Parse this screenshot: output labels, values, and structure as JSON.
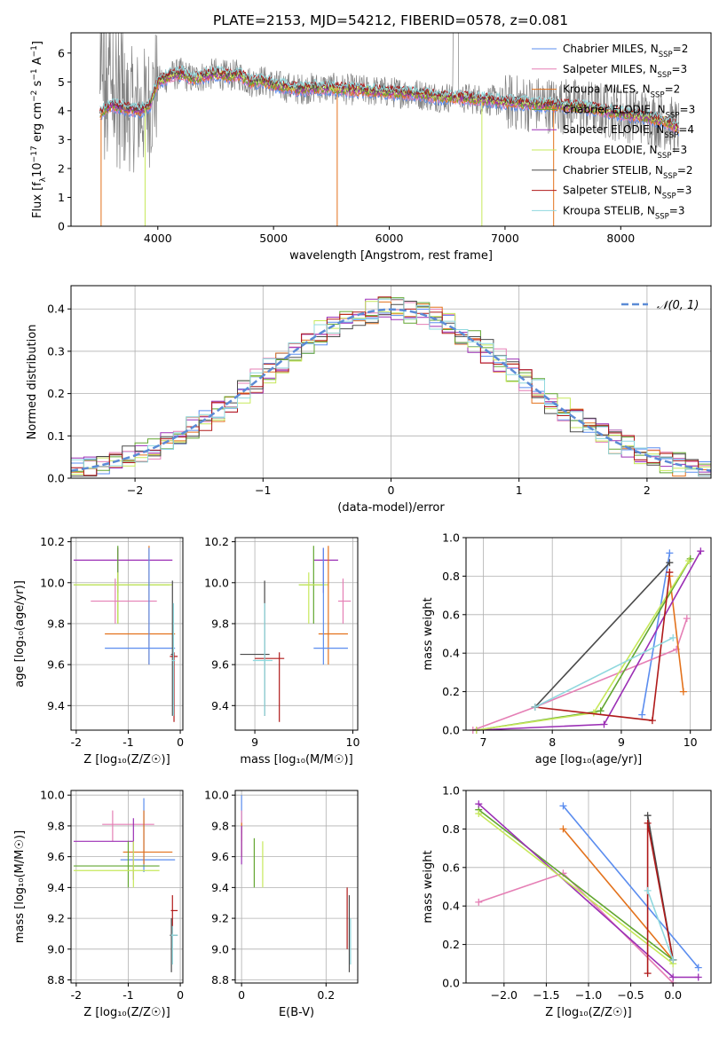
{
  "title": "PLATE=2153, MJD=54212, FIBERID=0578, z=0.081",
  "colors": {
    "chab_miles": "#5b8def",
    "salp_miles": "#e57fb5",
    "krou_miles": "#e3721c",
    "chab_elodie": "#62a630",
    "salp_elodie": "#9b2fb5",
    "krou_elodie": "#c6e85a",
    "chab_stelib": "#4a4a4a",
    "salp_stelib": "#b01a1a",
    "krou_stelib": "#8fd8de",
    "data": "#808080",
    "gauss": "#5b8bd6",
    "grid": "#b0b0b0"
  },
  "chart_data": [
    {
      "type": "line",
      "name": "spectrum",
      "xlabel": "wavelength [Angstrom, rest frame]",
      "ylabel": "Flux [f_λ 10^-17 erg cm^-2 s^-1 A^-1]",
      "xlim": [
        3250,
        8780
      ],
      "ylim": [
        0,
        6.7
      ],
      "xticks": [
        4000,
        5000,
        6000,
        7000,
        8000
      ],
      "yticks": [
        0,
        1,
        2,
        3,
        4,
        5,
        6
      ],
      "legend": {
        "position": "top-right",
        "entries": [
          {
            "label": "Chabrier MILES, N",
            "sub": "SSP",
            "tail": "=2",
            "key": "chab_miles"
          },
          {
            "label": "Salpeter MILES, N",
            "sub": "SSP",
            "tail": "=3",
            "key": "salp_miles"
          },
          {
            "label": "Kroupa MILES, N",
            "sub": "SSP",
            "tail": "=2",
            "key": "krou_miles"
          },
          {
            "label": "Chabrier ELODIE, N",
            "sub": "SSP",
            "tail": "=3",
            "key": "chab_elodie"
          },
          {
            "label": "Salpeter ELODIE, N",
            "sub": "SSP",
            "tail": "=4",
            "key": "salp_elodie"
          },
          {
            "label": "Kroupa ELODIE, N",
            "sub": "SSP",
            "tail": "=3",
            "key": "krou_elodie"
          },
          {
            "label": "Chabrier STELIB, N",
            "sub": "SSP",
            "tail": "=2",
            "key": "chab_stelib"
          },
          {
            "label": "Salpeter STELIB, N",
            "sub": "SSP",
            "tail": "=3",
            "key": "salp_stelib"
          },
          {
            "label": "Kroupa STELIB, N",
            "sub": "SSP",
            "tail": "=3",
            "key": "krou_stelib"
          }
        ]
      },
      "model_continuum": [
        [
          3500,
          3.9
        ],
        [
          3600,
          4.2
        ],
        [
          3700,
          4.1
        ],
        [
          3850,
          4.0
        ],
        [
          3930,
          4.2
        ],
        [
          4000,
          5.0
        ],
        [
          4100,
          5.2
        ],
        [
          4200,
          5.3
        ],
        [
          4300,
          5.1
        ],
        [
          4400,
          5.2
        ],
        [
          4500,
          5.3
        ],
        [
          4600,
          5.2
        ],
        [
          4700,
          5.25
        ],
        [
          4800,
          5.0
        ],
        [
          4900,
          5.05
        ],
        [
          5000,
          4.9
        ],
        [
          5200,
          4.75
        ],
        [
          5400,
          4.8
        ],
        [
          5600,
          4.75
        ],
        [
          5800,
          4.7
        ],
        [
          6000,
          4.65
        ],
        [
          6200,
          4.6
        ],
        [
          6400,
          4.5
        ],
        [
          6600,
          4.45
        ],
        [
          6800,
          4.4
        ],
        [
          7000,
          4.3
        ],
        [
          7200,
          4.25
        ],
        [
          7400,
          4.2
        ],
        [
          7600,
          4.15
        ],
        [
          7800,
          4.05
        ],
        [
          8000,
          3.9
        ],
        [
          8200,
          3.8
        ],
        [
          8400,
          3.6
        ],
        [
          8500,
          3.4
        ]
      ]
    },
    {
      "type": "line",
      "name": "residual-histogram",
      "xlabel": "(data-model)/error",
      "ylabel": "Normed distribution",
      "xlim": [
        -2.5,
        2.5
      ],
      "ylim": [
        0,
        0.455
      ],
      "xticks": [
        -2,
        -1,
        0,
        1,
        2
      ],
      "yticks": [
        0.0,
        0.1,
        0.2,
        0.3,
        0.4
      ],
      "xtick_labels": [
        "−2",
        "−1",
        "0",
        "1",
        "2"
      ],
      "legend_label": "𝒩(0, 1)",
      "bin_width": 0.1
    },
    {
      "type": "scatter",
      "name": "age-vs-Z",
      "xlabel": "Z [log₁₀(Z/Z☉)]",
      "ylabel": "age [log₁₀(age/yr)]",
      "xlim": [
        -2.1,
        0.05
      ],
      "ylim": [
        9.28,
        10.22
      ],
      "xticks": [
        -2,
        -1,
        0
      ],
      "yticks": [
        9.4,
        9.6,
        9.8,
        10.0,
        10.2
      ],
      "points": [
        {
          "key": "salp_elodie",
          "x": -1.2,
          "y": 10.11,
          "x0": -2.05,
          "x1": -0.15,
          "y0": 9.95,
          "y1": 10.17
        },
        {
          "key": "chab_elodie",
          "x": -1.2,
          "y": 9.99,
          "x0": -2.05,
          "x1": -0.2,
          "y0": 9.8,
          "y1": 10.18
        },
        {
          "key": "krou_elodie",
          "x": -1.2,
          "y": 9.99,
          "x0": -2.05,
          "x1": -0.15,
          "y0": 9.8,
          "y1": 10.05
        },
        {
          "key": "salp_miles",
          "x": -1.25,
          "y": 9.91,
          "x0": -1.72,
          "x1": -0.45,
          "y0": 9.8,
          "y1": 10.02
        },
        {
          "key": "krou_miles",
          "x": -0.6,
          "y": 9.75,
          "x0": -1.45,
          "x1": -0.1,
          "y0": 9.6,
          "y1": 10.18
        },
        {
          "key": "chab_miles",
          "x": -0.6,
          "y": 9.68,
          "x0": -1.45,
          "x1": -0.1,
          "y0": 9.6,
          "y1": 10.17
        },
        {
          "key": "chab_stelib",
          "x": -0.15,
          "y": 9.65,
          "x0": -0.18,
          "x1": -0.12,
          "y0": 9.35,
          "y1": 10.01
        },
        {
          "key": "salp_stelib",
          "x": -0.12,
          "y": 9.64,
          "x0": -0.2,
          "x1": -0.05,
          "y0": 9.32,
          "y1": 9.66
        },
        {
          "key": "krou_stelib",
          "x": -0.13,
          "y": 9.62,
          "x0": -0.16,
          "x1": -0.1,
          "y0": 9.35,
          "y1": 9.9
        }
      ]
    },
    {
      "type": "scatter",
      "name": "age-vs-mass",
      "xlabel": "mass [log₁₀(M/M☉)]",
      "ylabel": "",
      "xlim": [
        8.8,
        10.05
      ],
      "ylim": [
        9.28,
        10.22
      ],
      "xticks": [
        9,
        10
      ],
      "yticks": [
        9.4,
        9.6,
        9.8,
        10.0,
        10.2
      ],
      "points": [
        {
          "key": "salp_elodie",
          "x": 9.7,
          "y": 10.11,
          "x0": 9.6,
          "x1": 9.85,
          "y0": 9.95,
          "y1": 10.17
        },
        {
          "key": "chab_elodie",
          "x": 9.6,
          "y": 9.99,
          "x0": 9.45,
          "x1": 9.7,
          "y0": 9.8,
          "y1": 10.18
        },
        {
          "key": "krou_elodie",
          "x": 9.55,
          "y": 9.99,
          "x0": 9.45,
          "x1": 9.75,
          "y0": 9.8,
          "y1": 10.05
        },
        {
          "key": "salp_miles",
          "x": 9.9,
          "y": 9.91,
          "x0": 9.85,
          "x1": 9.98,
          "y0": 9.8,
          "y1": 10.02
        },
        {
          "key": "krou_miles",
          "x": 9.75,
          "y": 9.75,
          "x0": 9.65,
          "x1": 9.95,
          "y0": 9.6,
          "y1": 10.18
        },
        {
          "key": "chab_miles",
          "x": 9.7,
          "y": 9.68,
          "x0": 9.6,
          "x1": 9.95,
          "y0": 9.6,
          "y1": 10.17
        },
        {
          "key": "chab_stelib",
          "x": 9.1,
          "y": 9.65,
          "x0": 8.85,
          "x1": 9.15,
          "y0": 9.35,
          "y1": 10.01
        },
        {
          "key": "salp_stelib",
          "x": 9.25,
          "y": 9.63,
          "x0": 9.0,
          "x1": 9.3,
          "y0": 9.32,
          "y1": 9.66
        },
        {
          "key": "krou_stelib",
          "x": 9.1,
          "y": 9.62,
          "x0": 8.98,
          "x1": 9.18,
          "y0": 9.35,
          "y1": 9.9
        }
      ]
    },
    {
      "type": "line",
      "name": "mass-weight-vs-age",
      "xlabel": "age [log₁₀(age/yr)]",
      "ylabel": "mass weight",
      "xlim": [
        6.75,
        10.3
      ],
      "ylim": [
        0,
        1.0
      ],
      "xticks": [
        7,
        8,
        9,
        10
      ],
      "yticks": [
        0.0,
        0.2,
        0.4,
        0.6,
        0.8,
        1.0
      ],
      "series": [
        {
          "key": "chab_miles",
          "points": [
            [
              9.3,
              0.08
            ],
            [
              9.7,
              0.92
            ]
          ]
        },
        {
          "key": "salp_miles",
          "points": [
            [
              6.85,
              0
            ],
            [
              7.75,
              0.12
            ],
            [
              9.8,
              0.42
            ],
            [
              9.95,
              0.58
            ]
          ]
        },
        {
          "key": "krou_miles",
          "points": [
            [
              9.7,
              0.8
            ],
            [
              9.9,
              0.2
            ]
          ]
        },
        {
          "key": "chab_elodie",
          "points": [
            [
              6.9,
              0
            ],
            [
              8.7,
              0.1
            ],
            [
              10.0,
              0.89
            ]
          ]
        },
        {
          "key": "salp_elodie",
          "points": [
            [
              6.9,
              0
            ],
            [
              8.75,
              0.03
            ],
            [
              10.15,
              0.93
            ]
          ]
        },
        {
          "key": "krou_elodie",
          "points": [
            [
              6.9,
              0
            ],
            [
              8.6,
              0.09
            ],
            [
              9.98,
              0.88
            ]
          ]
        },
        {
          "key": "chab_stelib",
          "points": [
            [
              7.75,
              0.12
            ],
            [
              9.7,
              0.87
            ]
          ]
        },
        {
          "key": "salp_stelib",
          "points": [
            [
              7.75,
              0.12
            ],
            [
              9.45,
              0.05
            ],
            [
              9.7,
              0.82
            ]
          ]
        },
        {
          "key": "krou_stelib",
          "points": [
            [
              7.75,
              0.12
            ],
            [
              9.75,
              0.48
            ]
          ]
        }
      ]
    },
    {
      "type": "scatter",
      "name": "mass-vs-Z",
      "xlabel": "Z [log₁₀(Z/Z☉)]",
      "ylabel": "mass [log₁₀(M/M☉)]",
      "xlim": [
        -2.1,
        0.05
      ],
      "ylim": [
        8.78,
        10.03
      ],
      "xticks": [
        -2,
        -1,
        0
      ],
      "yticks": [
        8.8,
        9.0,
        9.2,
        9.4,
        9.6,
        9.8,
        10.0
      ],
      "points": [
        {
          "key": "salp_miles",
          "x": -1.3,
          "y": 9.81,
          "x0": -1.5,
          "x1": -0.5,
          "y0": 9.7,
          "y1": 9.9
        },
        {
          "key": "chab_miles",
          "x": -0.7,
          "y": 9.58,
          "x0": -1.15,
          "x1": -0.1,
          "y0": 9.5,
          "y1": 9.98
        },
        {
          "key": "krou_miles",
          "x": -0.7,
          "y": 9.63,
          "x0": -1.1,
          "x1": -0.15,
          "y0": 9.55,
          "y1": 9.9
        },
        {
          "key": "salp_elodie",
          "x": -0.9,
          "y": 9.7,
          "x0": -2.05,
          "x1": -0.9,
          "y0": 9.45,
          "y1": 9.85
        },
        {
          "key": "chab_elodie",
          "x": -1.0,
          "y": 9.54,
          "x0": -2.05,
          "x1": -0.4,
          "y0": 9.4,
          "y1": 9.7
        },
        {
          "key": "krou_elodie",
          "x": -0.9,
          "y": 9.51,
          "x0": -2.05,
          "x1": -0.4,
          "y0": 9.4,
          "y1": 9.7
        },
        {
          "key": "salp_stelib",
          "x": -0.15,
          "y": 9.25,
          "x0": -0.18,
          "x1": -0.05,
          "y0": 9.1,
          "y1": 9.35
        },
        {
          "key": "chab_stelib",
          "x": -0.17,
          "y": 9.09,
          "x0": -0.2,
          "x1": -0.05,
          "y0": 8.85,
          "y1": 9.2
        },
        {
          "key": "krou_stelib",
          "x": -0.15,
          "y": 9.09,
          "x0": -0.18,
          "x1": -0.05,
          "y0": 8.9,
          "y1": 9.15
        }
      ]
    },
    {
      "type": "scatter",
      "name": "mass-vs-EBV",
      "xlabel": "E(B-V)",
      "ylabel": "",
      "xlim": [
        -0.015,
        0.275
      ],
      "ylim": [
        8.78,
        10.03
      ],
      "xticks": [
        0.0,
        0.2
      ],
      "yticks": [
        8.8,
        9.0,
        9.2,
        9.4,
        9.6,
        9.8,
        10.0
      ],
      "points": [
        {
          "key": "chab_miles",
          "x": 0.0,
          "y": 9.9,
          "x0": 0.0,
          "x1": 0.0,
          "y0": 9.75,
          "y1": 10.0
        },
        {
          "key": "salp_miles",
          "x": 0.0,
          "y": 9.8,
          "x0": 0.0,
          "x1": 0.0,
          "y0": 9.7,
          "y1": 9.9
        },
        {
          "key": "krou_miles",
          "x": 0.0,
          "y": 9.7,
          "x0": 0.0,
          "x1": 0.0,
          "y0": 9.6,
          "y1": 9.82
        },
        {
          "key": "salp_elodie",
          "x": 0.0,
          "y": 9.7,
          "x0": 0.0,
          "x1": 0.0,
          "y0": 9.55,
          "y1": 9.8
        },
        {
          "key": "chab_elodie",
          "x": 0.03,
          "y": 9.54,
          "x0": 0.03,
          "x1": 0.03,
          "y0": 9.4,
          "y1": 9.72
        },
        {
          "key": "krou_elodie",
          "x": 0.05,
          "y": 9.51,
          "x0": 0.05,
          "x1": 0.05,
          "y0": 9.4,
          "y1": 9.7
        },
        {
          "key": "salp_stelib",
          "x": 0.25,
          "y": 9.25,
          "x0": 0.25,
          "x1": 0.25,
          "y0": 9.0,
          "y1": 9.4
        },
        {
          "key": "chab_stelib",
          "x": 0.255,
          "y": 9.09,
          "x0": 0.255,
          "x1": 0.255,
          "y0": 8.85,
          "y1": 9.35
        },
        {
          "key": "krou_stelib",
          "x": 0.258,
          "y": 9.09,
          "x0": 0.258,
          "x1": 0.258,
          "y0": 8.9,
          "y1": 9.2
        }
      ]
    },
    {
      "type": "line",
      "name": "mass-weight-vs-Z",
      "xlabel": "Z [log₁₀(Z/Z☉)]",
      "ylabel": "mass weight",
      "xlim": [
        -2.45,
        0.45
      ],
      "ylim": [
        0,
        1.0
      ],
      "xticks": [
        -2.0,
        -1.5,
        -1.0,
        -0.5,
        0.0
      ],
      "xtick_labels": [
        "−2.0",
        "−1.5",
        "−1.0",
        "−0.5",
        "0.0"
      ],
      "yticks": [
        0.0,
        0.2,
        0.4,
        0.6,
        0.8,
        1.0
      ],
      "series": [
        {
          "key": "chab_miles",
          "points": [
            [
              -1.3,
              0.92
            ],
            [
              0.3,
              0.08
            ]
          ]
        },
        {
          "key": "salp_miles",
          "points": [
            [
              -2.3,
              0.42
            ],
            [
              -1.3,
              0.57
            ],
            [
              0.0,
              0.0
            ]
          ]
        },
        {
          "key": "krou_miles",
          "points": [
            [
              -1.3,
              0.8
            ],
            [
              0.0,
              0.12
            ]
          ]
        },
        {
          "key": "chab_elodie",
          "points": [
            [
              -2.3,
              0.9
            ],
            [
              0.0,
              0.12
            ]
          ]
        },
        {
          "key": "salp_elodie",
          "points": [
            [
              -2.3,
              0.93
            ],
            [
              0.0,
              0.03
            ],
            [
              0.3,
              0.03
            ]
          ]
        },
        {
          "key": "krou_elodie",
          "points": [
            [
              -2.3,
              0.88
            ],
            [
              0.0,
              0.1
            ]
          ]
        },
        {
          "key": "chab_stelib",
          "points": [
            [
              -0.3,
              0.87
            ],
            [
              0.0,
              0.12
            ]
          ]
        },
        {
          "key": "salp_stelib",
          "points": [
            [
              -0.3,
              0.05
            ],
            [
              -0.3,
              0.83
            ],
            [
              0.0,
              0.12
            ]
          ]
        },
        {
          "key": "krou_stelib",
          "points": [
            [
              -0.3,
              0.48
            ],
            [
              0.0,
              0.12
            ]
          ]
        }
      ]
    }
  ]
}
